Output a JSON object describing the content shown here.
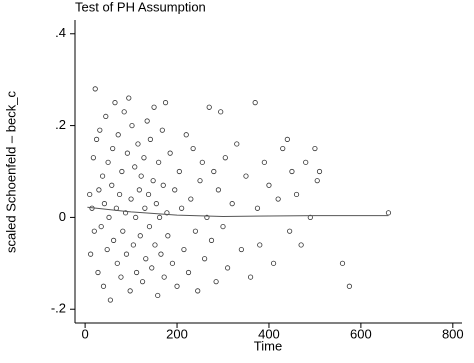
{
  "chart_data": {
    "type": "scatter",
    "title": "Test of PH Assumption",
    "x_label": "Time",
    "y_label": "scaled Schoenfeld – beck_c",
    "xlim": [
      -22,
      820
    ],
    "ylim": [
      -0.23,
      0.43
    ],
    "xticks": [
      0,
      200,
      400,
      600,
      800
    ],
    "yticks": [
      {
        "value": -0.2,
        "label": "-.2"
      },
      0,
      {
        "value": 0.2,
        "label": ".2"
      },
      {
        "value": 0.4,
        "label": ".4"
      }
    ],
    "series": [
      {
        "color": "#333333",
        "x": [
          10,
          12,
          15,
          18,
          20,
          22,
          25,
          28,
          30,
          32,
          35,
          38,
          40,
          42,
          45,
          48,
          50,
          52,
          55,
          58,
          60,
          62,
          65,
          68,
          70,
          72,
          75,
          78,
          80,
          82,
          85,
          88,
          90,
          92,
          95,
          98,
          100,
          102,
          105,
          108,
          110,
          112,
          115,
          118,
          120,
          122,
          125,
          128,
          130,
          132,
          135,
          138,
          140,
          142,
          145,
          148,
          150,
          152,
          155,
          158,
          160,
          162,
          165,
          168,
          170,
          172,
          175,
          178,
          180,
          185,
          190,
          195,
          200,
          205,
          210,
          215,
          220,
          225,
          230,
          235,
          240,
          245,
          250,
          255,
          260,
          265,
          270,
          275,
          280,
          285,
          290,
          295,
          300,
          305,
          310,
          320,
          330,
          340,
          350,
          360,
          370,
          375,
          380,
          390,
          400,
          410,
          420,
          430,
          440,
          445,
          450,
          460,
          470,
          480,
          490,
          500,
          505,
          510,
          560,
          575,
          660
        ],
        "values": [
          0.05,
          -0.08,
          0.02,
          0.13,
          -0.03,
          0.28,
          0.17,
          -0.12,
          0.06,
          0.19,
          -0.02,
          0.09,
          -0.15,
          0.03,
          0.22,
          -0.07,
          0.12,
          0.0,
          -0.18,
          0.07,
          0.15,
          -0.05,
          0.25,
          0.02,
          -0.1,
          0.18,
          0.05,
          -0.13,
          0.1,
          -0.03,
          0.23,
          0.01,
          -0.08,
          0.14,
          0.26,
          -0.16,
          0.04,
          0.2,
          -0.06,
          0.11,
          0.0,
          -0.12,
          0.16,
          0.06,
          -0.04,
          0.09,
          -0.14,
          0.13,
          0.02,
          -0.09,
          0.21,
          0.05,
          -0.02,
          0.17,
          -0.11,
          0.08,
          0.24,
          -0.06,
          0.03,
          -0.17,
          0.12,
          0.0,
          -0.08,
          0.19,
          0.07,
          -0.13,
          0.25,
          0.01,
          -0.04,
          0.14,
          -0.1,
          0.06,
          -0.15,
          0.1,
          0.02,
          -0.07,
          0.18,
          -0.12,
          0.04,
          0.15,
          -0.03,
          -0.16,
          0.08,
          0.12,
          -0.09,
          0.0,
          0.24,
          -0.05,
          0.1,
          -0.14,
          0.06,
          0.23,
          -0.02,
          0.13,
          -0.11,
          0.03,
          0.16,
          -0.07,
          0.09,
          -0.13,
          0.25,
          0.02,
          -0.06,
          0.12,
          0.07,
          -0.1,
          0.04,
          0.15,
          0.17,
          -0.03,
          0.1,
          0.05,
          -0.06,
          0.12,
          0.0,
          0.15,
          0.08,
          0.1,
          -0.1,
          -0.15,
          0.01
        ]
      }
    ],
    "fit": {
      "color": "#555555",
      "x": [
        5,
        100,
        200,
        300,
        400,
        500,
        600,
        660
      ],
      "values": [
        0.022,
        0.012,
        0.005,
        0.002,
        0.003,
        0.004,
        0.004,
        0.004
      ]
    }
  }
}
